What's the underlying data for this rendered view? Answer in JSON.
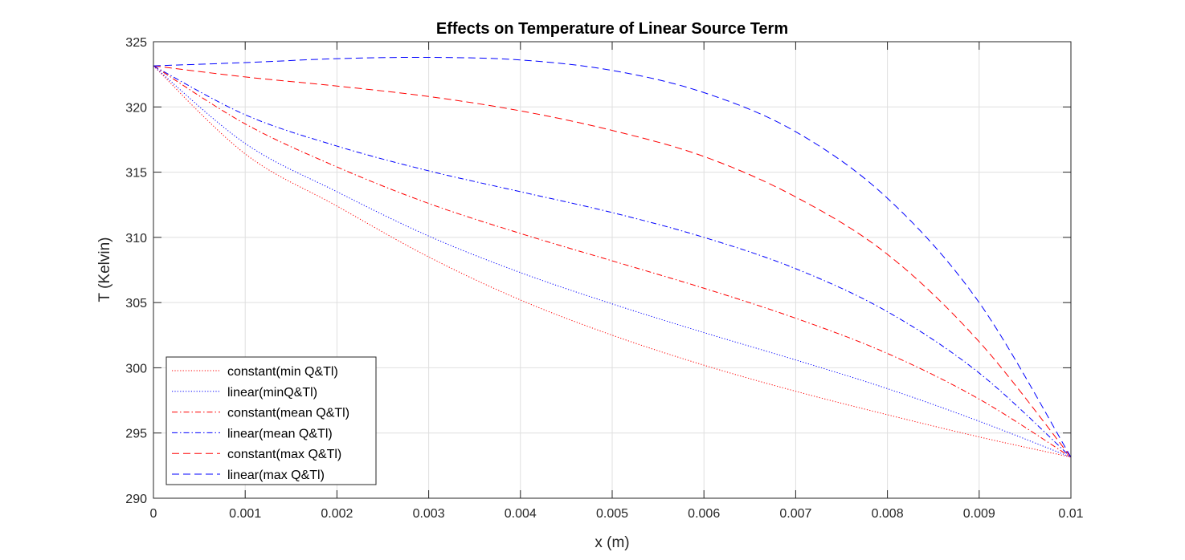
{
  "chart_data": {
    "type": "line",
    "title": "Effects on Temperature of Linear Source Term",
    "xlabel": "x (m)",
    "ylabel": "T (Kelvin)",
    "xlim": [
      0,
      0.01
    ],
    "ylim": [
      290,
      325
    ],
    "xticks": [
      0,
      0.001,
      0.002,
      0.003,
      0.004,
      0.005,
      0.006,
      0.007,
      0.008,
      0.009,
      0.01
    ],
    "xtick_labels": [
      "0",
      "0.001",
      "0.002",
      "0.003",
      "0.004",
      "0.005",
      "0.006",
      "0.007",
      "0.008",
      "0.009",
      "0.01"
    ],
    "yticks": [
      290,
      295,
      300,
      305,
      310,
      315,
      320,
      325
    ],
    "ytick_labels": [
      "290",
      "295",
      "300",
      "305",
      "310",
      "315",
      "320",
      "325"
    ],
    "grid": true,
    "legend_location": "bottom-left",
    "x": [
      0,
      0.001,
      0.002,
      0.003,
      0.004,
      0.005,
      0.006,
      0.007,
      0.008,
      0.009,
      0.01
    ],
    "series": [
      {
        "name": "constant(min Q&Tl)",
        "color": "#ff0000",
        "style": "dotted",
        "values": [
          323.15,
          316.4,
          312.4,
          308.5,
          305.2,
          302.5,
          300.2,
          298.2,
          296.4,
          294.7,
          293.15
        ]
      },
      {
        "name": "linear(minQ&Tl)",
        "color": "#0000ff",
        "style": "dotted",
        "values": [
          323.15,
          317.2,
          313.5,
          310.1,
          307.3,
          304.9,
          302.7,
          300.6,
          298.4,
          295.9,
          293.15
        ]
      },
      {
        "name": "constant(mean Q&Tl)",
        "color": "#ff0000",
        "style": "dashdot",
        "values": [
          323.15,
          318.7,
          315.4,
          312.6,
          310.3,
          308.2,
          306.1,
          303.8,
          301.1,
          297.6,
          293.15
        ]
      },
      {
        "name": "linear(mean Q&Tl)",
        "color": "#0000ff",
        "style": "dashdot",
        "values": [
          323.15,
          319.4,
          317.0,
          315.1,
          313.5,
          311.9,
          310.0,
          307.6,
          304.3,
          299.6,
          293.15
        ]
      },
      {
        "name": "constant(max Q&Tl)",
        "color": "#ff0000",
        "style": "dashed",
        "values": [
          323.15,
          322.3,
          321.6,
          320.8,
          319.7,
          318.2,
          316.2,
          313.1,
          308.7,
          302.0,
          293.15
        ]
      },
      {
        "name": "linear(max Q&Tl)",
        "color": "#0000ff",
        "style": "dashed",
        "values": [
          323.15,
          323.4,
          323.7,
          323.8,
          323.6,
          322.8,
          321.1,
          318.1,
          313.0,
          305.0,
          293.15
        ]
      }
    ]
  }
}
